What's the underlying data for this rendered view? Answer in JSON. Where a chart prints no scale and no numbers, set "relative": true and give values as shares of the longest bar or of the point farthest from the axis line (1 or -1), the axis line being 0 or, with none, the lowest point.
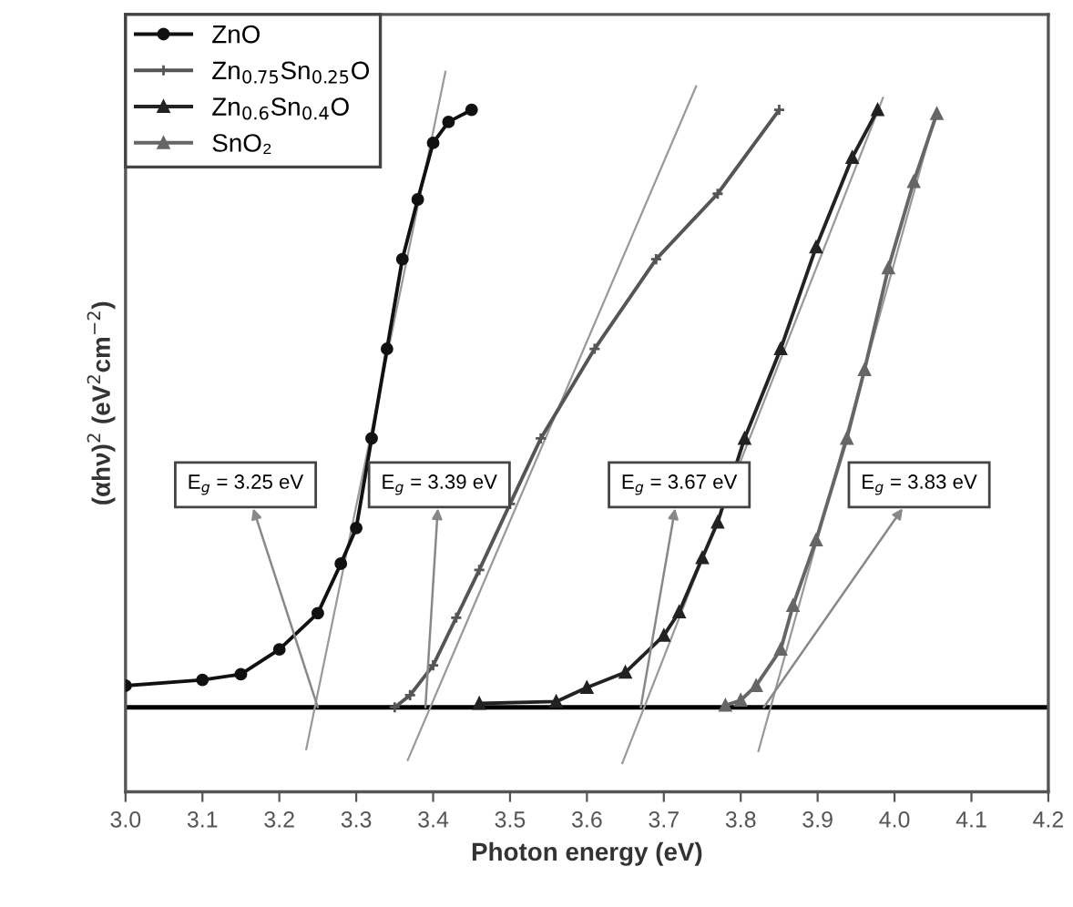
{
  "chart_data": {
    "type": "line",
    "relative": true,
    "xlabel": "Photon energy (eV)",
    "ylabel": "(αhν)$^{2}$ (eV$^{2}$cm$^{−2}$)",
    "xlim": [
      3.0,
      4.2
    ],
    "xticks": [
      {
        "value": 3.0,
        "label": "3.0"
      },
      3.1,
      3.2,
      3.3,
      3.4,
      3.5,
      3.6,
      3.7,
      3.8,
      3.9,
      {
        "value": 4.0,
        "label": "4.0"
      },
      4.1,
      4.2
    ],
    "legend": "top left",
    "grid": false,
    "line_style": "solid",
    "series": [
      {
        "name": "ZnO",
        "color": "#111111",
        "marker": "circle",
        "x": [
          3.0,
          3.1,
          3.15,
          3.2,
          3.25,
          3.28,
          3.3,
          3.32,
          3.34,
          3.36,
          3.38,
          3.4,
          3.42,
          3.45
        ],
        "values": [
          0.034,
          0.043,
          0.052,
          0.091,
          0.148,
          0.226,
          0.282,
          0.423,
          0.564,
          0.705,
          0.799,
          0.888,
          0.921,
          0.94
        ]
      },
      {
        "name": "Zn$_{0.75}$Sn$_{0.25}$O",
        "color": "#555555",
        "marker": "cross",
        "x": [
          3.35,
          3.37,
          3.4,
          3.43,
          3.46,
          3.5,
          3.54,
          3.61,
          3.69,
          3.77,
          3.85
        ],
        "values": [
          0.0,
          0.019,
          0.066,
          0.141,
          0.216,
          0.32,
          0.423,
          0.564,
          0.705,
          0.808,
          0.94
        ]
      },
      {
        "name": "Zn$_{0.6}$Sn$_{0.4}$O",
        "color": "#222222",
        "marker": "triangle",
        "x": [
          3.46,
          3.56,
          3.6,
          3.65,
          3.7,
          3.72,
          3.75,
          3.77,
          3.805,
          3.852,
          3.898,
          3.945,
          3.978
        ],
        "values": [
          0.006,
          0.009,
          0.031,
          0.055,
          0.113,
          0.15,
          0.235,
          0.291,
          0.423,
          0.564,
          0.724,
          0.865,
          0.94
        ]
      },
      {
        "name": "SnO₂",
        "color": "#666666",
        "marker": "triangle",
        "x": [
          3.78,
          3.8,
          3.82,
          3.852,
          3.868,
          3.898,
          3.938,
          3.961,
          3.992,
          4.025,
          4.055
        ],
        "values": [
          0.003,
          0.011,
          0.034,
          0.091,
          0.16,
          0.263,
          0.423,
          0.531,
          0.691,
          0.827,
          0.934
        ]
      },
      {
        "type": "line",
        "color": "#999999",
        "marker": "none",
        "x": [
          3.235,
          3.416
        ],
        "values": [
          -0.066,
          1.0
        ]
      },
      {
        "type": "line",
        "color": "#999999",
        "marker": "none",
        "x": [
          3.367,
          3.742
        ],
        "values": [
          -0.083,
          0.977
        ]
      },
      {
        "type": "line",
        "color": "#999999",
        "marker": "none",
        "x": [
          3.646,
          3.985
        ],
        "values": [
          -0.088,
          0.959
        ]
      },
      {
        "type": "line",
        "color": "#999999",
        "marker": "none",
        "x": [
          3.823,
          4.055
        ],
        "values": [
          -0.069,
          0.94
        ]
      }
    ],
    "annotations": [
      {
        "text": "E$_{g}$ = 3.25 eV",
        "x": 3.25,
        "y": 0
      },
      {
        "text": "E$_{g}$ = 3.39 eV",
        "x": 3.39,
        "y": 0
      },
      {
        "text": "E$_{g}$ = 3.67 eV",
        "x": 3.67,
        "y": 0
      },
      {
        "text": "E$_{g}$ = 3.83 eV",
        "x": 3.83,
        "y": 0
      }
    ]
  }
}
